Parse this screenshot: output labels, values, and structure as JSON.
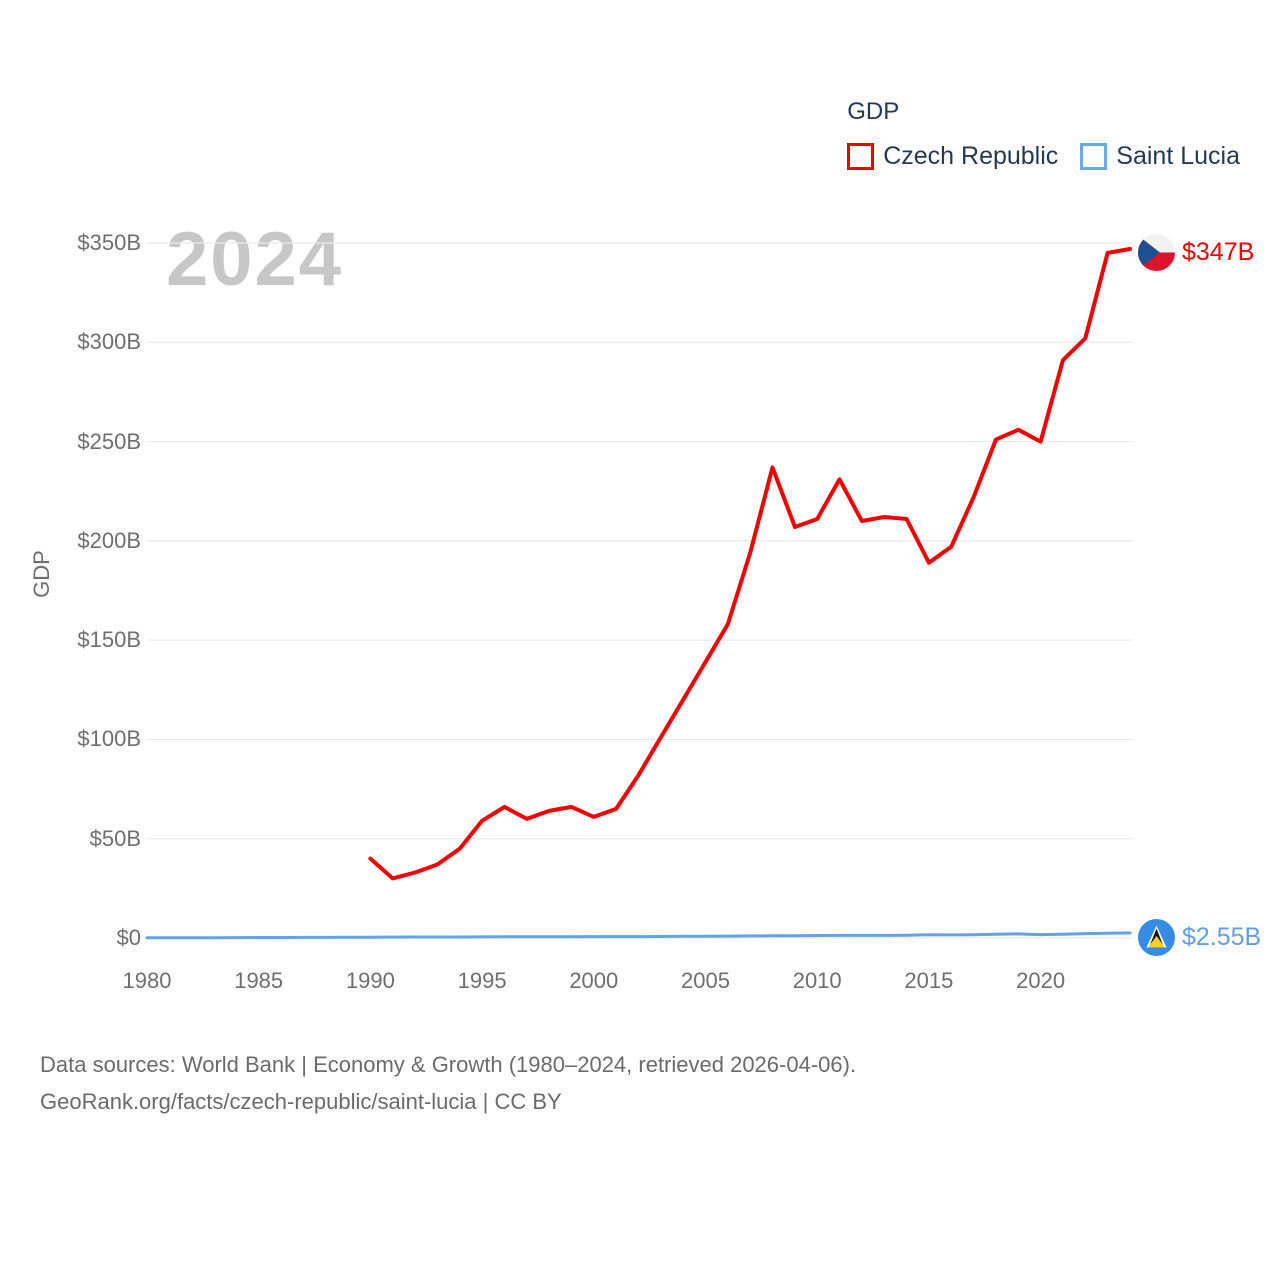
{
  "legend": {
    "title": "GDP",
    "items": [
      {
        "label": "Czech Republic",
        "color": "#f40000"
      },
      {
        "label": "Saint Lucia",
        "color": "#6aaae8"
      }
    ]
  },
  "watermark": "2024",
  "end_labels": {
    "czech": "$347B",
    "saint_lucia": "$2.55B"
  },
  "footer": {
    "line1": "Data sources: World Bank | Economy & Growth (1980–2024, retrieved 2026-04-06).",
    "line2": "GeoRank.org/facts/czech-republic/saint-lucia | CC BY"
  },
  "colors": {
    "czech_line": "#f40000",
    "saint_lucia_line": "#63a3e8",
    "gridline": "#eaeaea",
    "tick_text": "#6f6f6f",
    "legend_text": "#253a52",
    "watermark_text": "#c7c7c7"
  },
  "chart_data": {
    "type": "line",
    "title": "GDP",
    "ylabel": "GDP",
    "xlabel": "",
    "x_range": [
      1980,
      2024
    ],
    "y_range_billions": [
      0,
      350
    ],
    "grid": true,
    "legend_position": "top-right",
    "y_ticks": [
      {
        "value": 0,
        "label": "$0"
      },
      {
        "value": 50,
        "label": "$50B"
      },
      {
        "value": 100,
        "label": "$100B"
      },
      {
        "value": 150,
        "label": "$150B"
      },
      {
        "value": 200,
        "label": "$200B"
      },
      {
        "value": 250,
        "label": "$250B"
      },
      {
        "value": 300,
        "label": "$300B"
      },
      {
        "value": 350,
        "label": "$350B"
      }
    ],
    "x_ticks": [
      {
        "value": 1980,
        "label": "1980"
      },
      {
        "value": 1985,
        "label": "1985"
      },
      {
        "value": 1990,
        "label": "1990"
      },
      {
        "value": 1995,
        "label": "1995"
      },
      {
        "value": 2000,
        "label": "2000"
      },
      {
        "value": 2005,
        "label": "2005"
      },
      {
        "value": 2010,
        "label": "2010"
      },
      {
        "value": 2015,
        "label": "2015"
      },
      {
        "value": 2020,
        "label": "2020"
      }
    ],
    "series": [
      {
        "name": "Czech Republic",
        "color": "#f40000",
        "end_label": "$347B",
        "years": [
          1990,
          1991,
          1992,
          1993,
          1994,
          1995,
          1996,
          1997,
          1998,
          1999,
          2000,
          2001,
          2002,
          2003,
          2004,
          2005,
          2006,
          2007,
          2008,
          2009,
          2010,
          2011,
          2012,
          2013,
          2014,
          2015,
          2016,
          2017,
          2018,
          2019,
          2020,
          2021,
          2022,
          2023,
          2024
        ],
        "values_billions": [
          40,
          30,
          33,
          37,
          45,
          59,
          66,
          60,
          64,
          66,
          61,
          65,
          82,
          101,
          120,
          139,
          158,
          194,
          237,
          207,
          211,
          231,
          210,
          212,
          211,
          189,
          197,
          222,
          251,
          256,
          250,
          291,
          302,
          345,
          347
        ]
      },
      {
        "name": "Saint Lucia",
        "color": "#63a3e8",
        "end_label": "$2.55B",
        "years": [
          1980,
          1981,
          1982,
          1983,
          1984,
          1985,
          1986,
          1987,
          1988,
          1989,
          1990,
          1991,
          1992,
          1993,
          1994,
          1995,
          1996,
          1997,
          1998,
          1999,
          2000,
          2001,
          2002,
          2003,
          2004,
          2005,
          2006,
          2007,
          2008,
          2009,
          2010,
          2011,
          2012,
          2013,
          2014,
          2015,
          2016,
          2017,
          2018,
          2019,
          2020,
          2021,
          2022,
          2023,
          2024
        ],
        "values_billions": [
          0.13,
          0.15,
          0.16,
          0.17,
          0.19,
          0.24,
          0.26,
          0.28,
          0.32,
          0.34,
          0.4,
          0.43,
          0.48,
          0.49,
          0.51,
          0.55,
          0.58,
          0.59,
          0.63,
          0.67,
          0.72,
          0.71,
          0.72,
          0.78,
          0.84,
          0.9,
          0.98,
          1.06,
          1.13,
          1.12,
          1.24,
          1.29,
          1.3,
          1.33,
          1.4,
          1.6,
          1.57,
          1.66,
          1.87,
          2.07,
          1.7,
          1.93,
          2.2,
          2.43,
          2.55
        ]
      }
    ]
  }
}
